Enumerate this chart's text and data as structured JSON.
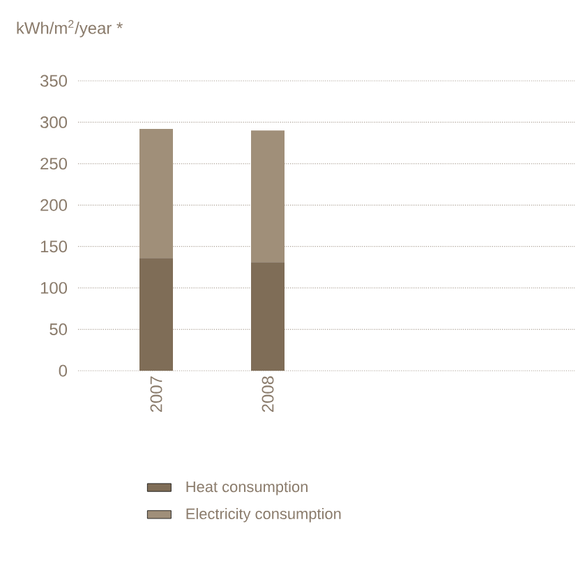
{
  "chart_data": {
    "type": "bar",
    "stacked": true,
    "ylabel": "kWh/m$^{2}$/year *",
    "categories": [
      "2007",
      "2008"
    ],
    "series": [
      {
        "name": "Heat consumption",
        "color": "#7f6d57",
        "values": [
          136,
          131
        ]
      },
      {
        "name": "Electricity consumption",
        "color": "#a08f79",
        "values": [
          156,
          159
        ]
      }
    ],
    "ylim": [
      0,
      350
    ],
    "yticks": [
      0,
      50,
      100,
      150,
      200,
      250,
      300,
      350
    ],
    "grid": "y",
    "legend": "bottom"
  }
}
